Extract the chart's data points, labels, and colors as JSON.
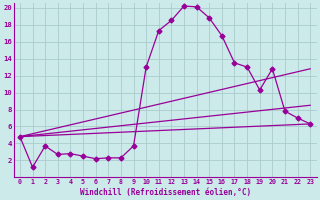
{
  "xlabel": "Windchill (Refroidissement éolien,°C)",
  "bg_color": "#cceaea",
  "grid_color": "#aacccc",
  "line_color": "#990099",
  "xlim": [
    -0.5,
    23.5
  ],
  "ylim": [
    0,
    20.5
  ],
  "xticks": [
    0,
    1,
    2,
    3,
    4,
    5,
    6,
    7,
    8,
    9,
    10,
    11,
    12,
    13,
    14,
    15,
    16,
    17,
    18,
    19,
    20,
    21,
    22,
    23
  ],
  "yticks": [
    2,
    4,
    6,
    8,
    10,
    12,
    14,
    16,
    18,
    20
  ],
  "line1_x": [
    0,
    1,
    2,
    3,
    4,
    5,
    6,
    7,
    8,
    9,
    10,
    11,
    12,
    13,
    14,
    15,
    16,
    17,
    18,
    19,
    20,
    21,
    22,
    23
  ],
  "line1_y": [
    4.8,
    1.2,
    3.7,
    2.7,
    2.8,
    2.5,
    2.2,
    2.3,
    2.3,
    3.7,
    13.0,
    17.3,
    18.5,
    20.2,
    20.1,
    18.8,
    16.7,
    13.5,
    13.0,
    10.3,
    12.8,
    7.8,
    7.0,
    6.3
  ],
  "line2_x": [
    0,
    23
  ],
  "line2_y": [
    4.8,
    6.3
  ],
  "line3_x": [
    0,
    23
  ],
  "line3_y": [
    4.8,
    8.5
  ],
  "line4_x": [
    0,
    23
  ],
  "line4_y": [
    4.8,
    12.8
  ],
  "markersize": 2.5,
  "linewidth": 0.9
}
